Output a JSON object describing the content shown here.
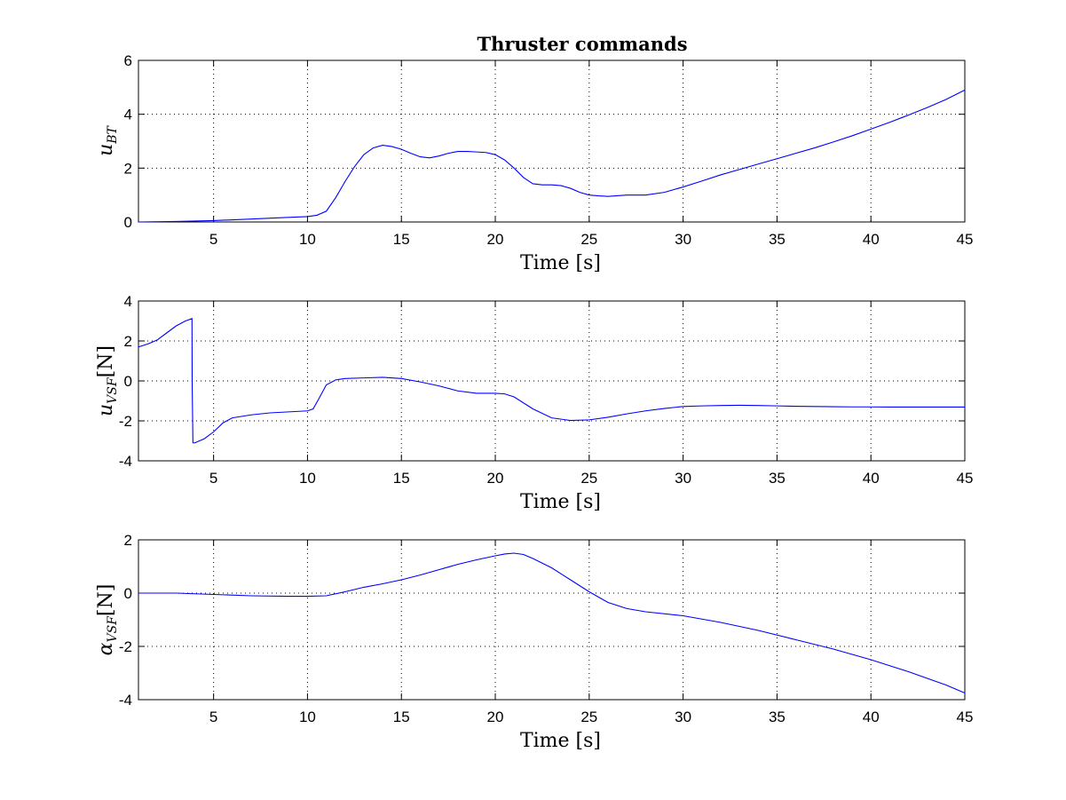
{
  "figure": {
    "title": "Thruster commands",
    "background": "#ffffff",
    "line_color": "#0000ff"
  },
  "chart_data": [
    {
      "type": "line",
      "title": "Thruster commands",
      "xlabel": "Time [s]",
      "ylabel": "u_BT",
      "ylabel_main": "u",
      "ylabel_sub": "BT",
      "ylabel_suffix": "",
      "xlim": [
        1,
        45
      ],
      "ylim": [
        0,
        6
      ],
      "xticks": [
        5,
        10,
        15,
        20,
        25,
        30,
        35,
        40,
        45
      ],
      "yticks": [
        0,
        2,
        4,
        6
      ],
      "grid": true,
      "series": [
        {
          "x": [
            1,
            3,
            5,
            7,
            9,
            10,
            10.5,
            11,
            11.5,
            12,
            12.5,
            13,
            13.5,
            14,
            14.5,
            15,
            15.5,
            16,
            16.5,
            17,
            17.5,
            18,
            18.5,
            19,
            19.5,
            20,
            20.5,
            21,
            21.5,
            22,
            22.5,
            23,
            23.5,
            24,
            24.5,
            25,
            25.5,
            26,
            27,
            28,
            29,
            30,
            31,
            32,
            33,
            34,
            35,
            36,
            37,
            38,
            39,
            40,
            41,
            42,
            43,
            44,
            45
          ],
          "y": [
            0.0,
            0.02,
            0.05,
            0.11,
            0.17,
            0.2,
            0.25,
            0.4,
            0.9,
            1.5,
            2.05,
            2.5,
            2.75,
            2.85,
            2.8,
            2.7,
            2.55,
            2.42,
            2.38,
            2.45,
            2.55,
            2.62,
            2.62,
            2.6,
            2.58,
            2.5,
            2.3,
            2.0,
            1.65,
            1.42,
            1.38,
            1.38,
            1.35,
            1.25,
            1.1,
            1.0,
            0.97,
            0.95,
            1.0,
            1.0,
            1.1,
            1.3,
            1.52,
            1.75,
            1.95,
            2.15,
            2.35,
            2.55,
            2.75,
            2.97,
            3.2,
            3.45,
            3.7,
            3.97,
            4.25,
            4.55,
            4.9
          ]
        }
      ]
    },
    {
      "type": "line",
      "title": "",
      "xlabel": "Time [s]",
      "ylabel": "u_VSF [N]",
      "ylabel_main": "u",
      "ylabel_sub": "VSF",
      "ylabel_suffix": "[N]",
      "xlim": [
        1,
        45
      ],
      "ylim": [
        -4,
        4
      ],
      "xticks": [
        5,
        10,
        15,
        20,
        25,
        30,
        35,
        40,
        45
      ],
      "yticks": [
        -4,
        -2,
        0,
        2,
        4
      ],
      "grid": true,
      "series": [
        {
          "x": [
            1,
            1.5,
            2,
            2.5,
            3,
            3.5,
            3.85,
            3.86,
            3.9,
            4.0,
            4.5,
            5,
            5.5,
            6,
            7,
            8,
            9,
            10,
            10.3,
            10.6,
            11,
            11.5,
            12,
            13,
            14,
            15,
            16,
            17,
            18,
            19,
            20,
            20.5,
            21,
            22,
            23,
            24,
            25,
            26,
            27,
            28,
            29,
            30,
            31,
            32,
            33,
            34,
            35,
            36,
            37,
            38,
            39,
            40,
            41,
            42,
            43,
            44,
            45
          ],
          "y": [
            1.7,
            1.85,
            2.05,
            2.4,
            2.75,
            3.0,
            3.12,
            -0.1,
            -3.1,
            -3.1,
            -2.9,
            -2.55,
            -2.1,
            -1.85,
            -1.7,
            -1.6,
            -1.55,
            -1.5,
            -1.4,
            -0.9,
            -0.2,
            0.05,
            0.12,
            0.15,
            0.18,
            0.12,
            -0.05,
            -0.25,
            -0.5,
            -0.62,
            -0.62,
            -0.65,
            -0.8,
            -1.4,
            -1.85,
            -1.98,
            -1.95,
            -1.82,
            -1.65,
            -1.5,
            -1.38,
            -1.28,
            -1.25,
            -1.23,
            -1.22,
            -1.23,
            -1.25,
            -1.27,
            -1.28,
            -1.29,
            -1.3,
            -1.3,
            -1.31,
            -1.31,
            -1.31,
            -1.31,
            -1.31
          ]
        }
      ]
    },
    {
      "type": "line",
      "title": "",
      "xlabel": "Time [s]",
      "ylabel": "α_VSF [N]",
      "ylabel_main": "α",
      "ylabel_sub": "VSF",
      "ylabel_suffix": "[N]",
      "xlim": [
        1,
        45
      ],
      "ylim": [
        -4,
        2
      ],
      "xticks": [
        5,
        10,
        15,
        20,
        25,
        30,
        35,
        40,
        45
      ],
      "yticks": [
        -4,
        -2,
        0,
        2
      ],
      "grid": true,
      "series": [
        {
          "x": [
            1,
            3,
            5,
            7,
            9,
            10,
            11,
            12,
            13,
            14,
            15,
            16,
            17,
            18,
            19,
            20,
            20.5,
            21,
            21.5,
            22,
            23,
            24,
            25,
            26,
            27,
            28,
            30,
            32,
            34,
            36,
            38,
            40,
            42,
            44,
            45
          ],
          "y": [
            0.0,
            0.0,
            -0.05,
            -0.1,
            -0.12,
            -0.12,
            -0.1,
            0.05,
            0.22,
            0.35,
            0.5,
            0.68,
            0.88,
            1.08,
            1.25,
            1.4,
            1.47,
            1.5,
            1.45,
            1.3,
            0.95,
            0.5,
            0.05,
            -0.35,
            -0.58,
            -0.7,
            -0.85,
            -1.1,
            -1.4,
            -1.75,
            -2.1,
            -2.5,
            -2.95,
            -3.45,
            -3.75
          ]
        }
      ]
    }
  ]
}
